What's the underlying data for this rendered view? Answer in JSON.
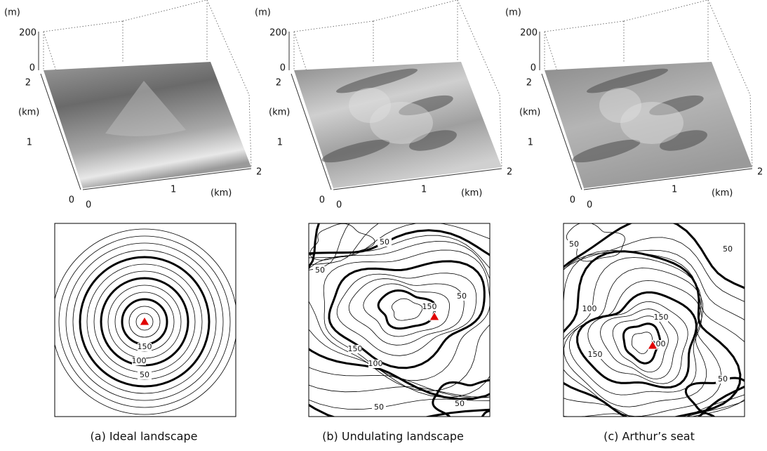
{
  "panels": [
    {
      "surface": {
        "z_unit": "(m)",
        "z_ticks": [
          "200",
          "0"
        ],
        "y_ticks": [
          "2",
          "1",
          "0"
        ],
        "y_unit": "(km)",
        "x_ticks": [
          "0",
          "1",
          "2"
        ],
        "x_unit": "(km)"
      },
      "contour_labels": [
        "150",
        "100",
        "50"
      ],
      "caption": "(a) Ideal landscape"
    },
    {
      "surface": {
        "z_unit": "(m)",
        "z_ticks": [
          "200",
          "0"
        ],
        "y_ticks": [
          "2",
          "1",
          "0"
        ],
        "y_unit": "(km)",
        "x_ticks": [
          "0",
          "1",
          "2"
        ],
        "x_unit": "(km)"
      },
      "contour_labels": [
        "50",
        "50",
        "50",
        "150",
        "150",
        "100",
        "50",
        "50"
      ],
      "caption": "(b) Undulating landscape"
    },
    {
      "surface": {
        "z_unit": "(m)",
        "z_ticks": [
          "200",
          "0"
        ],
        "y_ticks": [
          "2",
          "1",
          "0"
        ],
        "y_unit": "(km)",
        "x_ticks": [
          "0",
          "1",
          "2"
        ],
        "x_unit": "(km)"
      },
      "contour_labels": [
        "50",
        "50",
        "100",
        "150",
        "150",
        "200",
        "50"
      ],
      "caption": "(c) Arthur’s seat"
    }
  ]
}
